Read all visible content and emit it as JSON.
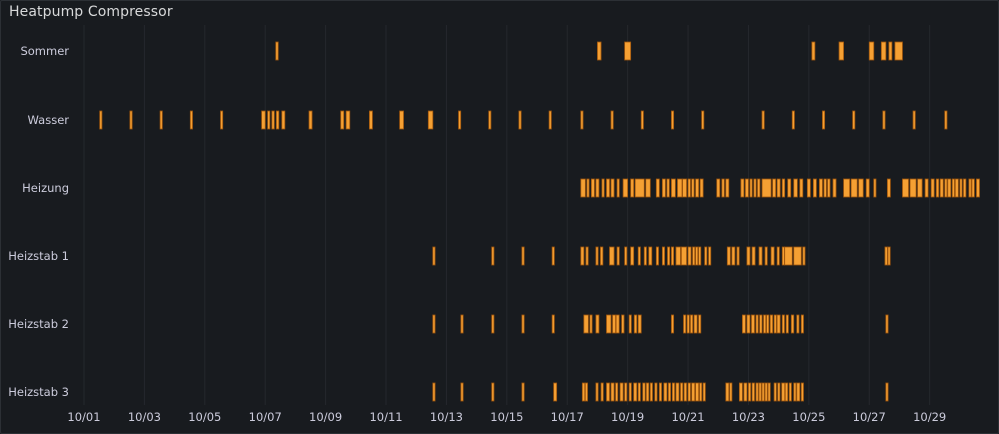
{
  "panel": {
    "title": "Heatpump Compressor"
  },
  "colors": {
    "background": "#181b1f",
    "bar_fill": "#f5a033",
    "bar_stroke": "#a0560c",
    "grid": "#25282d",
    "text": "#ccccdc"
  },
  "chart_data": {
    "type": "state-timeline",
    "title": "Heatpump Compressor",
    "x_unit": "day of October",
    "x_range": [
      1,
      30.7
    ],
    "grid": true,
    "x_ticks": [
      {
        "value": 1,
        "label": "10/01"
      },
      {
        "value": 3,
        "label": "10/03"
      },
      {
        "value": 5,
        "label": "10/05"
      },
      {
        "value": 7,
        "label": "10/07"
      },
      {
        "value": 9,
        "label": "10/09"
      },
      {
        "value": 11,
        "label": "10/11"
      },
      {
        "value": 13,
        "label": "10/13"
      },
      {
        "value": 15,
        "label": "10/15"
      },
      {
        "value": 17,
        "label": "10/17"
      },
      {
        "value": 19,
        "label": "10/19"
      },
      {
        "value": 21,
        "label": "10/21"
      },
      {
        "value": 23,
        "label": "10/23"
      },
      {
        "value": 25,
        "label": "10/25"
      },
      {
        "value": 27,
        "label": "10/27"
      },
      {
        "value": 29,
        "label": "10/29"
      }
    ],
    "series": [
      {
        "name": "Sommer",
        "intervals": [
          [
            7.35,
            7.43
          ],
          [
            18.0,
            18.12
          ],
          [
            18.9,
            19.1
          ],
          [
            25.1,
            25.2
          ],
          [
            26.0,
            26.15
          ],
          [
            27.0,
            27.15
          ],
          [
            27.4,
            27.55
          ],
          [
            27.65,
            27.75
          ],
          [
            27.85,
            28.1
          ]
        ]
      },
      {
        "name": "Wasser",
        "intervals": [
          [
            1.52,
            1.58
          ],
          [
            2.52,
            2.58
          ],
          [
            3.52,
            3.58
          ],
          [
            4.52,
            4.58
          ],
          [
            5.52,
            5.58
          ],
          [
            6.88,
            7.0
          ],
          [
            7.08,
            7.15
          ],
          [
            7.22,
            7.3
          ],
          [
            7.37,
            7.45
          ],
          [
            7.55,
            7.65
          ],
          [
            8.45,
            8.55
          ],
          [
            9.5,
            9.6
          ],
          [
            9.68,
            9.8
          ],
          [
            10.45,
            10.55
          ],
          [
            11.45,
            11.58
          ],
          [
            12.4,
            12.55
          ],
          [
            13.4,
            13.47
          ],
          [
            14.4,
            14.47
          ],
          [
            15.4,
            15.47
          ],
          [
            16.4,
            16.47
          ],
          [
            17.45,
            17.52
          ],
          [
            18.45,
            18.52
          ],
          [
            19.45,
            19.52
          ],
          [
            20.45,
            20.52
          ],
          [
            21.45,
            21.52
          ],
          [
            23.45,
            23.52
          ],
          [
            24.45,
            24.52
          ],
          [
            25.45,
            25.52
          ],
          [
            26.45,
            26.52
          ],
          [
            27.45,
            27.52
          ],
          [
            28.45,
            28.52
          ],
          [
            29.5,
            29.57
          ]
        ]
      },
      {
        "name": "Heizung",
        "intervals": [
          [
            17.45,
            17.6
          ],
          [
            17.65,
            17.72
          ],
          [
            17.8,
            17.9
          ],
          [
            17.95,
            18.05
          ],
          [
            18.15,
            18.22
          ],
          [
            18.3,
            18.4
          ],
          [
            18.45,
            18.55
          ],
          [
            18.65,
            18.7
          ],
          [
            18.85,
            19.0
          ],
          [
            19.1,
            19.2
          ],
          [
            19.25,
            19.55
          ],
          [
            19.6,
            19.75
          ],
          [
            19.95,
            20.05
          ],
          [
            20.15,
            20.25
          ],
          [
            20.3,
            20.38
          ],
          [
            20.45,
            20.58
          ],
          [
            20.65,
            20.8
          ],
          [
            20.82,
            20.95
          ],
          [
            21.0,
            21.08
          ],
          [
            21.12,
            21.2
          ],
          [
            21.25,
            21.35
          ],
          [
            21.4,
            21.5
          ],
          [
            21.95,
            22.05
          ],
          [
            22.12,
            22.2
          ],
          [
            22.25,
            22.35
          ],
          [
            22.75,
            22.85
          ],
          [
            22.9,
            23.0
          ],
          [
            23.05,
            23.12
          ],
          [
            23.18,
            23.25
          ],
          [
            23.3,
            23.38
          ],
          [
            23.45,
            23.75
          ],
          [
            23.8,
            23.9
          ],
          [
            23.95,
            24.05
          ],
          [
            24.12,
            24.2
          ],
          [
            24.3,
            24.4
          ],
          [
            24.5,
            24.62
          ],
          [
            24.7,
            24.8
          ],
          [
            24.95,
            25.05
          ],
          [
            25.15,
            25.25
          ],
          [
            25.35,
            25.45
          ],
          [
            25.5,
            25.58
          ],
          [
            25.62,
            25.7
          ],
          [
            25.8,
            25.9
          ],
          [
            26.15,
            26.35
          ],
          [
            26.4,
            26.6
          ],
          [
            26.65,
            26.8
          ],
          [
            26.9,
            27.0
          ],
          [
            27.15,
            27.22
          ],
          [
            27.6,
            27.7
          ],
          [
            28.1,
            28.3
          ],
          [
            28.35,
            28.55
          ],
          [
            28.6,
            28.75
          ],
          [
            28.85,
            28.95
          ],
          [
            29.05,
            29.15
          ],
          [
            29.22,
            29.3
          ],
          [
            29.35,
            29.45
          ],
          [
            29.5,
            29.55
          ],
          [
            29.6,
            29.7
          ],
          [
            29.75,
            29.8
          ],
          [
            29.85,
            29.95
          ],
          [
            30.0,
            30.05
          ],
          [
            30.12,
            30.2
          ],
          [
            30.3,
            30.35
          ],
          [
            30.4,
            30.48
          ],
          [
            30.55,
            30.65
          ]
        ]
      },
      {
        "name": "Heizstab 1",
        "intervals": [
          [
            12.55,
            12.6
          ],
          [
            14.5,
            14.56
          ],
          [
            15.5,
            15.56
          ],
          [
            16.5,
            16.56
          ],
          [
            17.45,
            17.55
          ],
          [
            17.62,
            17.68
          ],
          [
            17.95,
            18.02
          ],
          [
            18.1,
            18.18
          ],
          [
            18.4,
            18.55
          ],
          [
            18.65,
            18.72
          ],
          [
            18.9,
            18.95
          ],
          [
            19.1,
            19.2
          ],
          [
            19.35,
            19.42
          ],
          [
            19.55,
            19.62
          ],
          [
            19.7,
            19.8
          ],
          [
            19.95,
            20.02
          ],
          [
            20.15,
            20.2
          ],
          [
            20.32,
            20.37
          ],
          [
            20.45,
            20.52
          ],
          [
            20.6,
            20.75
          ],
          [
            20.78,
            20.95
          ],
          [
            21.0,
            21.1
          ],
          [
            21.15,
            21.2
          ],
          [
            21.25,
            21.3
          ],
          [
            21.35,
            21.42
          ],
          [
            21.55,
            21.6
          ],
          [
            21.68,
            21.72
          ],
          [
            22.3,
            22.4
          ],
          [
            22.45,
            22.55
          ],
          [
            22.62,
            22.68
          ],
          [
            22.95,
            23.05
          ],
          [
            23.12,
            23.22
          ],
          [
            23.35,
            23.45
          ],
          [
            23.55,
            23.62
          ],
          [
            23.75,
            23.85
          ],
          [
            23.95,
            24.02
          ],
          [
            24.12,
            24.15
          ],
          [
            24.2,
            24.45
          ],
          [
            24.5,
            24.75
          ],
          [
            24.8,
            24.87
          ],
          [
            27.52,
            27.6
          ],
          [
            27.62,
            27.68
          ]
        ]
      },
      {
        "name": "Heizstab 2",
        "intervals": [
          [
            12.55,
            12.6
          ],
          [
            13.48,
            13.53
          ],
          [
            14.5,
            14.56
          ],
          [
            15.5,
            15.56
          ],
          [
            16.5,
            16.56
          ],
          [
            17.55,
            17.7
          ],
          [
            17.75,
            17.8
          ],
          [
            17.95,
            18.05
          ],
          [
            18.3,
            18.45
          ],
          [
            18.5,
            18.6
          ],
          [
            18.62,
            18.72
          ],
          [
            18.8,
            18.88
          ],
          [
            19.05,
            19.12
          ],
          [
            19.22,
            19.3
          ],
          [
            19.35,
            19.45
          ],
          [
            20.45,
            20.52
          ],
          [
            20.85,
            20.9
          ],
          [
            20.97,
            21.02
          ],
          [
            21.08,
            21.15
          ],
          [
            21.2,
            21.3
          ],
          [
            21.35,
            21.42
          ],
          [
            22.8,
            22.9
          ],
          [
            22.95,
            23.05
          ],
          [
            23.1,
            23.2
          ],
          [
            23.25,
            23.32
          ],
          [
            23.37,
            23.45
          ],
          [
            23.5,
            23.55
          ],
          [
            23.6,
            23.67
          ],
          [
            23.72,
            23.8
          ],
          [
            23.85,
            23.9
          ],
          [
            23.95,
            24.05
          ],
          [
            24.12,
            24.15
          ],
          [
            24.25,
            24.32
          ],
          [
            24.42,
            24.5
          ],
          [
            24.6,
            24.65
          ],
          [
            24.75,
            24.82
          ],
          [
            27.55,
            27.6
          ]
        ]
      },
      {
        "name": "Heizstab 3",
        "intervals": [
          [
            12.55,
            12.6
          ],
          [
            13.48,
            13.53
          ],
          [
            14.5,
            14.56
          ],
          [
            15.5,
            15.56
          ],
          [
            16.55,
            16.65
          ],
          [
            17.5,
            17.58
          ],
          [
            17.6,
            17.65
          ],
          [
            17.95,
            18.02
          ],
          [
            18.12,
            18.18
          ],
          [
            18.3,
            18.4
          ],
          [
            18.45,
            18.55
          ],
          [
            18.6,
            18.67
          ],
          [
            18.75,
            18.85
          ],
          [
            18.9,
            18.95
          ],
          [
            19.05,
            19.12
          ],
          [
            19.2,
            19.3
          ],
          [
            19.35,
            19.42
          ],
          [
            19.5,
            19.58
          ],
          [
            19.62,
            19.7
          ],
          [
            19.75,
            19.82
          ],
          [
            19.9,
            19.97
          ],
          [
            20.05,
            20.12
          ],
          [
            20.2,
            20.3
          ],
          [
            20.35,
            20.42
          ],
          [
            20.48,
            20.55
          ],
          [
            20.6,
            20.7
          ],
          [
            20.75,
            20.82
          ],
          [
            20.87,
            20.95
          ],
          [
            21.0,
            21.08
          ],
          [
            21.12,
            21.22
          ],
          [
            21.25,
            21.35
          ],
          [
            21.38,
            21.45
          ],
          [
            21.5,
            21.55
          ],
          [
            22.25,
            22.35
          ],
          [
            22.38,
            22.45
          ],
          [
            22.7,
            22.8
          ],
          [
            22.85,
            22.95
          ],
          [
            23.0,
            23.07
          ],
          [
            23.12,
            23.2
          ],
          [
            23.25,
            23.3
          ],
          [
            23.35,
            23.42
          ],
          [
            23.45,
            23.52
          ],
          [
            23.55,
            23.62
          ],
          [
            23.65,
            23.72
          ],
          [
            23.85,
            23.92
          ],
          [
            23.97,
            24.02
          ],
          [
            24.1,
            24.2
          ],
          [
            24.22,
            24.3
          ],
          [
            24.35,
            24.42
          ],
          [
            24.5,
            24.57
          ],
          [
            24.6,
            24.7
          ],
          [
            24.75,
            24.82
          ],
          [
            27.55,
            27.6
          ]
        ]
      }
    ]
  }
}
